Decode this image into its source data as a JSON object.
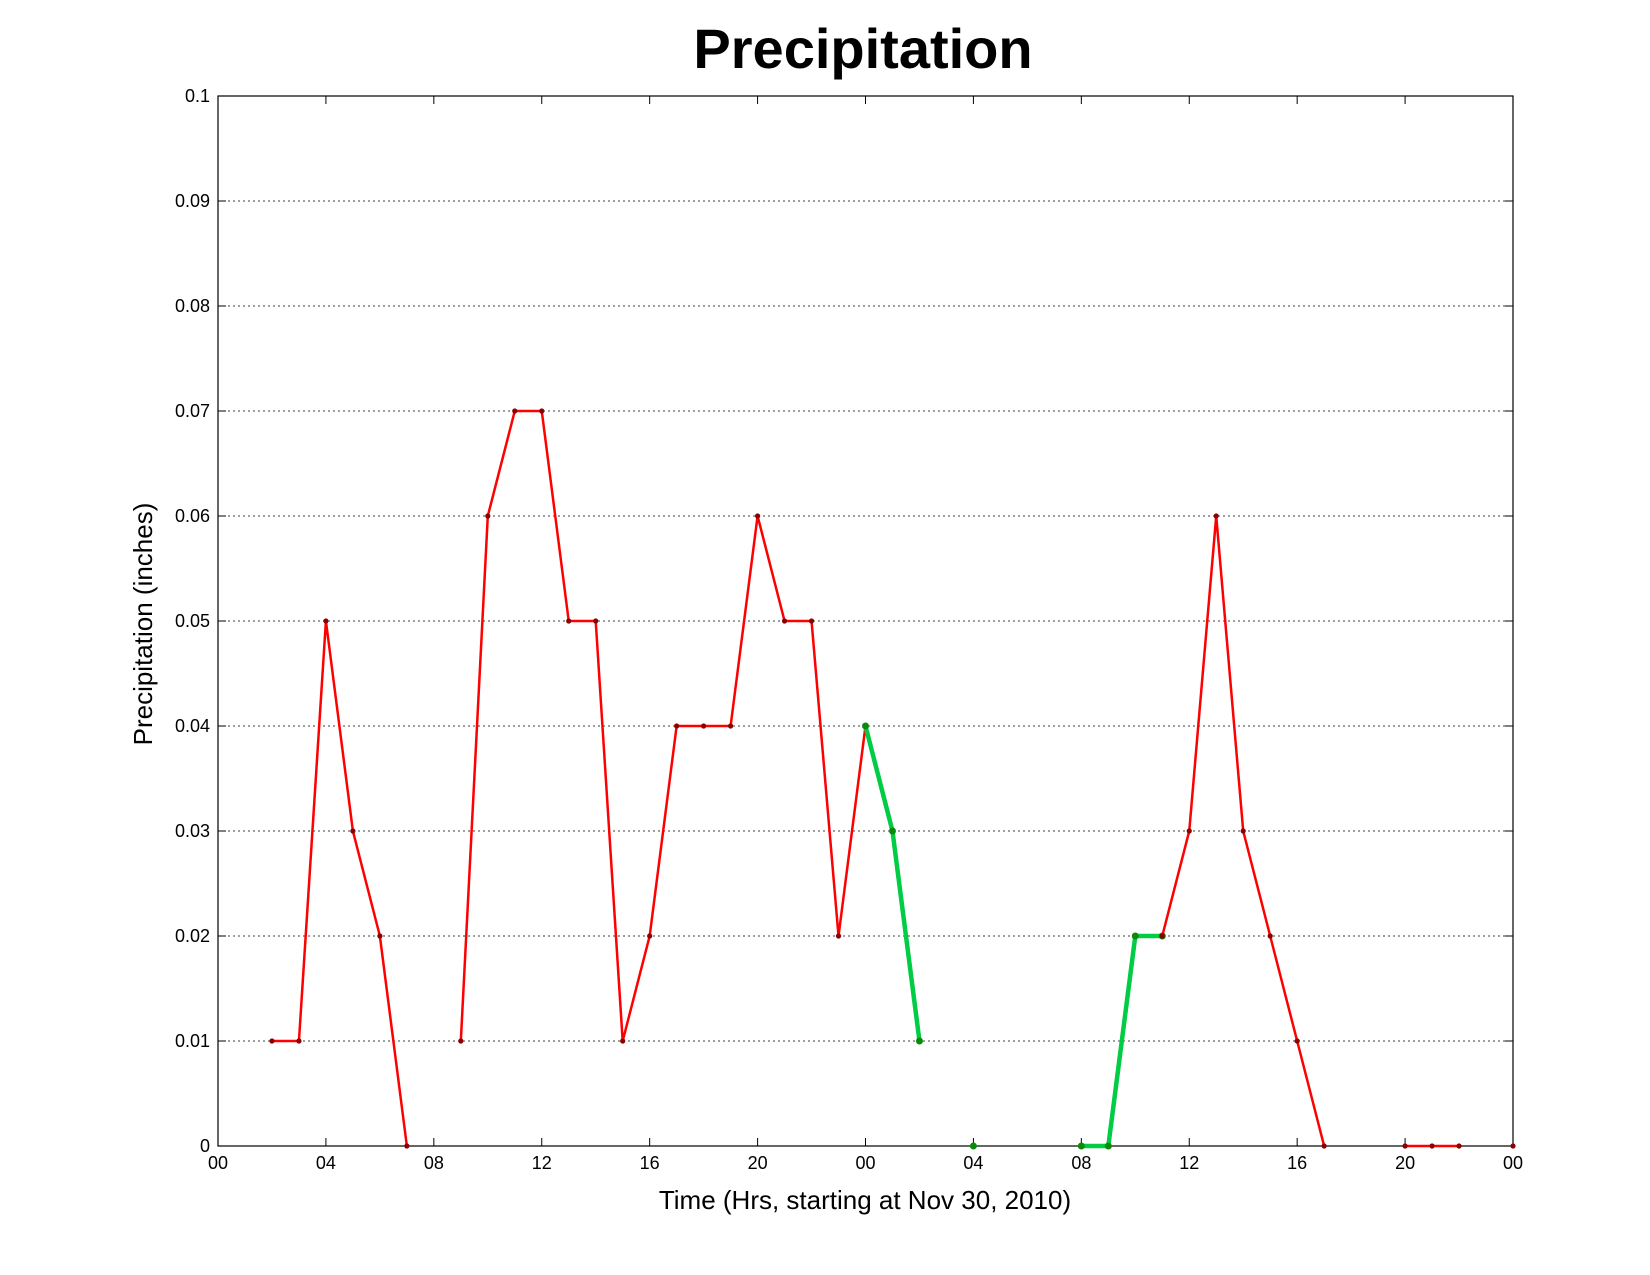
{
  "chart_data": {
    "type": "line",
    "title": "Precipitation",
    "xlabel": "Time (Hrs, starting at Nov 30, 2010)",
    "ylabel": "Precipitation (inches)",
    "xlim": [
      0,
      48
    ],
    "ylim": [
      0,
      0.1
    ],
    "grid": "horizontal dotted",
    "x_ticks": [
      0,
      4,
      8,
      12,
      16,
      20,
      24,
      28,
      32,
      36,
      40,
      44,
      48
    ],
    "x_tick_labels": [
      "00",
      "04",
      "08",
      "12",
      "16",
      "20",
      "00",
      "04",
      "08",
      "12",
      "16",
      "20",
      "00"
    ],
    "y_ticks": [
      0,
      0.01,
      0.02,
      0.03,
      0.04,
      0.05,
      0.06,
      0.07,
      0.08,
      0.09,
      0.1
    ],
    "y_tick_labels": [
      "0",
      "0.01",
      "0.02",
      "0.03",
      "0.04",
      "0.05",
      "0.06",
      "0.07",
      "0.08",
      "0.09",
      "0.1"
    ],
    "colors": {
      "red_line": "#ff0000",
      "green_line": "#00cc44",
      "marker": "#8b0000",
      "green_marker": "#0a8a0a"
    },
    "series": [
      {
        "color": "red",
        "x": [
          2,
          3,
          4,
          5,
          6,
          7
        ],
        "values": [
          0.01,
          0.01,
          0.05,
          0.03,
          0.02,
          0
        ]
      },
      {
        "color": "red",
        "x": [
          9,
          10,
          11,
          12,
          13,
          14,
          15,
          16,
          17,
          18,
          19,
          20,
          21,
          22,
          23,
          24
        ],
        "values": [
          0.01,
          0.06,
          0.07,
          0.07,
          0.05,
          0.05,
          0.01,
          0.02,
          0.04,
          0.04,
          0.04,
          0.06,
          0.05,
          0.05,
          0.02,
          0.04
        ]
      },
      {
        "color": "green",
        "x": [
          24,
          25,
          26
        ],
        "values": [
          0.04,
          0.03,
          0.01
        ]
      },
      {
        "color": "green",
        "x": [
          28
        ],
        "values": [
          0
        ]
      },
      {
        "color": "green",
        "x": [
          32,
          33,
          34,
          35
        ],
        "values": [
          0,
          0,
          0.02,
          0.02
        ]
      },
      {
        "color": "red",
        "x": [
          35,
          36,
          37,
          38,
          39,
          40,
          41
        ],
        "values": [
          0.02,
          0.03,
          0.06,
          0.03,
          0.02,
          0.01,
          0
        ]
      },
      {
        "color": "red",
        "x": [
          44,
          45,
          46
        ],
        "values": [
          0,
          0,
          0
        ]
      },
      {
        "color": "red",
        "x": [
          48
        ],
        "values": [
          0
        ]
      }
    ]
  }
}
